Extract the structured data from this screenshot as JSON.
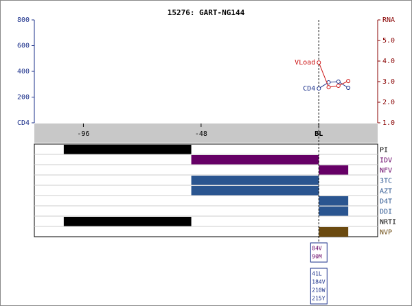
{
  "chart_data": [
    {
      "type": "line",
      "title": "15276: GART-NG144",
      "xlim": [
        -116,
        24
      ],
      "xticks": [
        -96,
        -48,
        {
          "value": 0,
          "label": "BL"
        }
      ],
      "ylim": [
        0,
        800
      ],
      "yticks": [
        {
          "value": 0,
          "label": "CD4"
        },
        200,
        400,
        600,
        800
      ],
      "y2lim": [
        1,
        6
      ],
      "y2ticks": [
        {
          "value": 1,
          "label": "1.0"
        },
        {
          "value": 2,
          "label": "2.0"
        },
        {
          "value": 3,
          "label": "3.0"
        },
        {
          "value": 4,
          "label": "4.0"
        },
        {
          "value": 5,
          "label": "5.0"
        },
        {
          "value": 6,
          "label": "RNA"
        }
      ],
      "series": [
        {
          "name": "CD4",
          "color": "#1a2f8a",
          "x": [
            0,
            4,
            8,
            12
          ],
          "values": [
            267,
            315,
            320,
            272
          ]
        },
        {
          "name": "VLoad",
          "color": "#cc1111",
          "axis": "y2",
          "x": [
            0,
            4,
            8,
            12
          ],
          "values": [
            3.93,
            2.73,
            2.8,
            3.03
          ]
        }
      ]
    },
    {
      "type": "timeline",
      "rows": [
        {
          "name": "PI",
          "color": "#000000",
          "start": -104,
          "end": -52
        },
        {
          "name": "IDV",
          "color": "#660066",
          "start": -52,
          "end": 0
        },
        {
          "name": "NFV",
          "color": "#660066",
          "start": 0,
          "end": 12
        },
        {
          "name": "3TC",
          "color": "#2a5590",
          "start": -52,
          "end": 0
        },
        {
          "name": "AZT",
          "color": "#2a5590",
          "start": -52,
          "end": 0
        },
        {
          "name": "D4T",
          "color": "#2a5590",
          "start": 0,
          "end": 12
        },
        {
          "name": "DDI",
          "color": "#2a5590",
          "start": 0,
          "end": 12
        },
        {
          "name": "NRTI",
          "color": "#000000",
          "start": -104,
          "end": -52
        },
        {
          "name": "NVP",
          "color": "#6b4a10",
          "start": 0,
          "end": 12
        }
      ],
      "mutation_boxes": [
        {
          "color": "#660066",
          "labels": [
            "84V",
            "90M"
          ]
        },
        {
          "color": "#1a2f8a",
          "labels": [
            "41L",
            "184V",
            "210W",
            "215Y"
          ]
        }
      ]
    }
  ]
}
